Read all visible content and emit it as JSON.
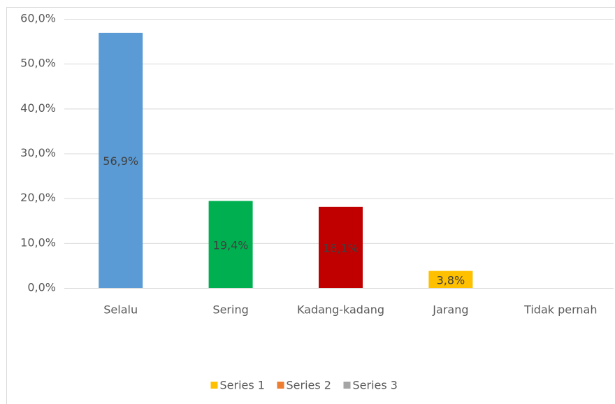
{
  "chart_data": {
    "type": "bar",
    "categories": [
      "Selalu",
      "Sering",
      "Kadang-kadang",
      "Jarang",
      "Tidak pernah"
    ],
    "values": [
      56.9,
      19.4,
      18.1,
      3.8,
      null
    ],
    "value_labels": [
      "56,9%",
      "19,4%",
      "18,1%",
      "3,8%",
      null
    ],
    "colors": [
      "#5b9bd5",
      "#00b050",
      "#c00000",
      "#ffc000",
      "#a5a5a5"
    ],
    "ylim": [
      0,
      60
    ],
    "yticks": [
      {
        "value": 0,
        "label": "0,0%"
      },
      {
        "value": 10,
        "label": "10,0%"
      },
      {
        "value": 20,
        "label": "20,0%"
      },
      {
        "value": 30,
        "label": "30,0%"
      },
      {
        "value": 40,
        "label": "40,0%"
      },
      {
        "value": 50,
        "label": "50,0%"
      },
      {
        "value": 60,
        "label": "60,0%"
      }
    ],
    "grid": true,
    "legend_position": "bottom",
    "legend": [
      {
        "name": "Series 1",
        "color": "#ffc000"
      },
      {
        "name": "Series 2",
        "color": "#ed7d31"
      },
      {
        "name": "Series 3",
        "color": "#a5a5a5"
      }
    ]
  }
}
